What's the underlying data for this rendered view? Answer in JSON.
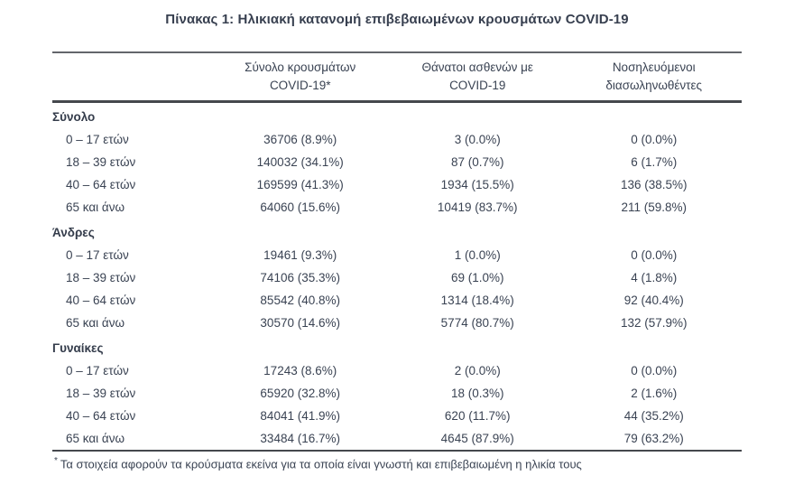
{
  "title": "Πίνακας 1: Ηλικιακή κατανομή επιβεβαιωμένων κρουσμάτων COVID-19",
  "table": {
    "columns": [
      [
        "Σύνολο κρουσμάτων",
        "COVID-19*"
      ],
      [
        "Θάνατοι ασθενών με",
        "COVID-19"
      ],
      [
        "Νοσηλευόμενοι",
        "διασωληνωθέντες"
      ]
    ],
    "sections": [
      {
        "name": "Σύνολο",
        "rows": [
          {
            "label": "0 – 17 ετών",
            "cases": "36706 (8.9%)",
            "deaths": "3 (0.0%)",
            "intubated": "0 (0.0%)"
          },
          {
            "label": "18 – 39 ετών",
            "cases": "140032 (34.1%)",
            "deaths": "87 (0.7%)",
            "intubated": "6 (1.7%)"
          },
          {
            "label": "40 – 64 ετών",
            "cases": "169599 (41.3%)",
            "deaths": "1934 (15.5%)",
            "intubated": "136 (38.5%)"
          },
          {
            "label": "65 και άνω",
            "cases": "64060 (15.6%)",
            "deaths": "10419 (83.7%)",
            "intubated": "211 (59.8%)"
          }
        ]
      },
      {
        "name": "Άνδρες",
        "rows": [
          {
            "label": "0 – 17 ετών",
            "cases": "19461 (9.3%)",
            "deaths": "1 (0.0%)",
            "intubated": "0 (0.0%)"
          },
          {
            "label": "18 – 39 ετών",
            "cases": "74106 (35.3%)",
            "deaths": "69 (1.0%)",
            "intubated": "4 (1.8%)"
          },
          {
            "label": "40 – 64 ετών",
            "cases": "85542 (40.8%)",
            "deaths": "1314 (18.4%)",
            "intubated": "92 (40.4%)"
          },
          {
            "label": "65 και άνω",
            "cases": "30570 (14.6%)",
            "deaths": "5774 (80.7%)",
            "intubated": "132 (57.9%)"
          }
        ]
      },
      {
        "name": "Γυναίκες",
        "rows": [
          {
            "label": "0 – 17 ετών",
            "cases": "17243 (8.6%)",
            "deaths": "2 (0.0%)",
            "intubated": "0 (0.0%)"
          },
          {
            "label": "18 – 39 ετών",
            "cases": "65920 (32.8%)",
            "deaths": "18 (0.3%)",
            "intubated": "2 (1.6%)"
          },
          {
            "label": "40 – 64 ετών",
            "cases": "84041 (41.9%)",
            "deaths": "620 (11.7%)",
            "intubated": "44 (35.2%)"
          },
          {
            "label": "65 και άνω",
            "cases": "33484 (16.7%)",
            "deaths": "4645 (87.9%)",
            "intubated": "79 (63.2%)"
          }
        ]
      }
    ],
    "footnote_marker": "*",
    "footnote": "Τα στοιχεία αφορούν τα κρούσματα εκείνα για τα οποία είναι γνωστή και επιβεβαιωμένη η ηλικία τους"
  },
  "colors": {
    "text": "#3a4353",
    "rule_top": "#63666b",
    "rule_heavy": "#45484d"
  }
}
